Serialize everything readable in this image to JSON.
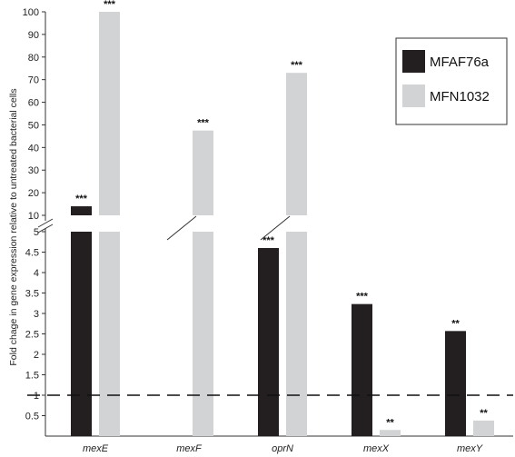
{
  "chart_data": {
    "type": "bar",
    "title": "",
    "xlabel": "",
    "ylabel": "Fold chage in gene expression relative to untreated bacterial cells",
    "categories": [
      "mexE",
      "mexF",
      "oprN",
      "mexX",
      "mexY"
    ],
    "series": [
      {
        "name": "MFAF76a",
        "color": "#231f20",
        "values": [
          14,
          null,
          4.6,
          3.23,
          2.57
        ],
        "significance": [
          "***",
          "",
          "***",
          "***",
          "**"
        ]
      },
      {
        "name": "MFN1032",
        "color": "#d1d3d4",
        "values": [
          100,
          47.5,
          73,
          0.15,
          0.38
        ],
        "significance": [
          "***",
          "***",
          "***",
          "**",
          "**"
        ]
      }
    ],
    "y_axis_broken": true,
    "lower_segment": {
      "range": [
        0,
        5
      ],
      "ticks": [
        "0.5",
        "1",
        "1.5",
        "2",
        "2.5",
        "3",
        "3.5",
        "4",
        "4.5",
        "5"
      ]
    },
    "upper_segment": {
      "range": [
        10,
        100
      ],
      "ticks": [
        "10",
        "20",
        "30",
        "40",
        "50",
        "60",
        "70",
        "80",
        "90",
        "100"
      ]
    },
    "reference_line": {
      "value": 1,
      "style": "dashed"
    },
    "legend_position": "top-right",
    "grid": false
  }
}
